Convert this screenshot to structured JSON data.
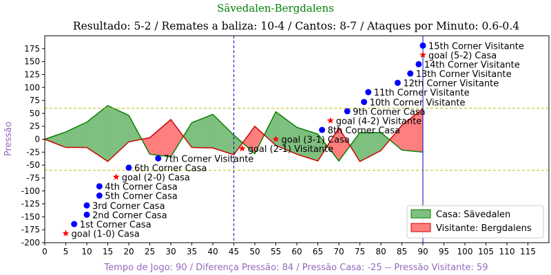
{
  "chart_data": {
    "type": "area",
    "title": "Sävedalen-Bergdalens",
    "subtitle": "Resultado: 5-2 / Remates a baliza: 10-4 / Cantos: 8-7 / Ataques por Minuto: 0.6-0.4",
    "xlabel": "Tempo de Jogo: 90 / Diferença Pressão: 84 / Pressão Casa: -25 -- Pressão Visitante: 59",
    "ylabel": "Pressão",
    "xlim": [
      0,
      120
    ],
    "ylim": [
      -200,
      200
    ],
    "x_ticks": [
      0,
      5,
      10,
      15,
      20,
      25,
      30,
      35,
      40,
      45,
      50,
      55,
      60,
      65,
      70,
      75,
      80,
      85,
      90,
      95,
      100,
      105,
      110,
      115
    ],
    "y_ticks": [
      -200,
      -175,
      -150,
      -125,
      -100,
      -75,
      -50,
      -25,
      0,
      25,
      50,
      75,
      100,
      125,
      150,
      175
    ],
    "reference_lines": {
      "horizontal": [
        60,
        -60
      ],
      "vertical": [
        45,
        90
      ],
      "colors": {
        "horizontal": "#bfbf00",
        "halftime": "#0000cc",
        "fulltime": "#0000cc"
      }
    },
    "legend": {
      "position": "lower-right",
      "entries": [
        "Casa: Sävedalen",
        "Visitante: Bergdalens"
      ]
    },
    "series": [
      {
        "name": "Casa: Sävedalen",
        "color": "#008000",
        "fill": "#7fbf7f",
        "x": [
          0,
          5,
          10,
          15,
          20,
          25,
          30,
          35,
          40,
          45,
          50,
          55,
          60,
          65,
          70,
          75,
          80,
          85,
          90
        ],
        "y": [
          0,
          14,
          33,
          65,
          46,
          -29,
          -34,
          32,
          48,
          8,
          -28,
          53,
          23,
          10,
          -42,
          13,
          13,
          -21,
          -25
        ]
      },
      {
        "name": "Visitante: Bergdalens",
        "color": "#cc0000",
        "fill": "#ff7f7f",
        "x": [
          0,
          5,
          10,
          15,
          20,
          25,
          30,
          35,
          40,
          45,
          50,
          55,
          60,
          65,
          70,
          75,
          80,
          85,
          90
        ],
        "y": [
          0,
          -16,
          -16,
          -43,
          -5,
          3,
          38,
          -16,
          -17,
          -30,
          25,
          -12,
          -29,
          -42,
          22,
          -43,
          -22,
          27,
          59
        ]
      }
    ],
    "events": [
      {
        "type": "goal",
        "x": 5,
        "y": -182,
        "label": "goal (1-0) Casa"
      },
      {
        "type": "corner",
        "x": 7,
        "y": -164,
        "label": "1st Corner Casa"
      },
      {
        "type": "corner",
        "x": 10,
        "y": -146,
        "label": "2nd Corner Casa"
      },
      {
        "type": "corner",
        "x": 10,
        "y": -128,
        "label": "3rd Corner Casa"
      },
      {
        "type": "corner",
        "x": 13,
        "y": -91,
        "label": "4th Corner Casa"
      },
      {
        "type": "corner",
        "x": 13,
        "y": -109,
        "label": "5th Corner Casa"
      },
      {
        "type": "goal",
        "x": 17,
        "y": -73,
        "label": "goal (2-0) Casa"
      },
      {
        "type": "corner",
        "x": 20,
        "y": -55,
        "label": "6th Corner Casa"
      },
      {
        "type": "corner",
        "x": 27,
        "y": -37,
        "label": "7th Corner Visitante"
      },
      {
        "type": "goal",
        "x": 47,
        "y": -18,
        "label": "goal (2-1) Visitante"
      },
      {
        "type": "goal",
        "x": 55,
        "y": 0,
        "label": "goal (3-1) Casa"
      },
      {
        "type": "corner",
        "x": 66,
        "y": 18,
        "label": "8th Corner Casa"
      },
      {
        "type": "goal",
        "x": 68,
        "y": 36,
        "label": "goal (4-2) Visitante"
      },
      {
        "type": "corner",
        "x": 72,
        "y": 54,
        "label": "9th Corner Casa"
      },
      {
        "type": "corner",
        "x": 76,
        "y": 72,
        "label": "10th Corner Visitante"
      },
      {
        "type": "corner",
        "x": 77,
        "y": 91,
        "label": "11th Corner Visitante"
      },
      {
        "type": "corner",
        "x": 84,
        "y": 109,
        "label": "12th Corner Visitante"
      },
      {
        "type": "corner",
        "x": 87,
        "y": 127,
        "label": "13th Corner Visitante"
      },
      {
        "type": "corner",
        "x": 89,
        "y": 145,
        "label": "14th Corner Visitante"
      },
      {
        "type": "goal",
        "x": 90,
        "y": 163,
        "label": "goal (5-2) Casa"
      },
      {
        "type": "corner",
        "x": 90,
        "y": 181,
        "label": "15th Corner Visitante"
      }
    ],
    "colors": {
      "title": "#008000",
      "axis_label": "#9467bd",
      "corner": "#0000ff",
      "goal": "#ff0000"
    }
  }
}
